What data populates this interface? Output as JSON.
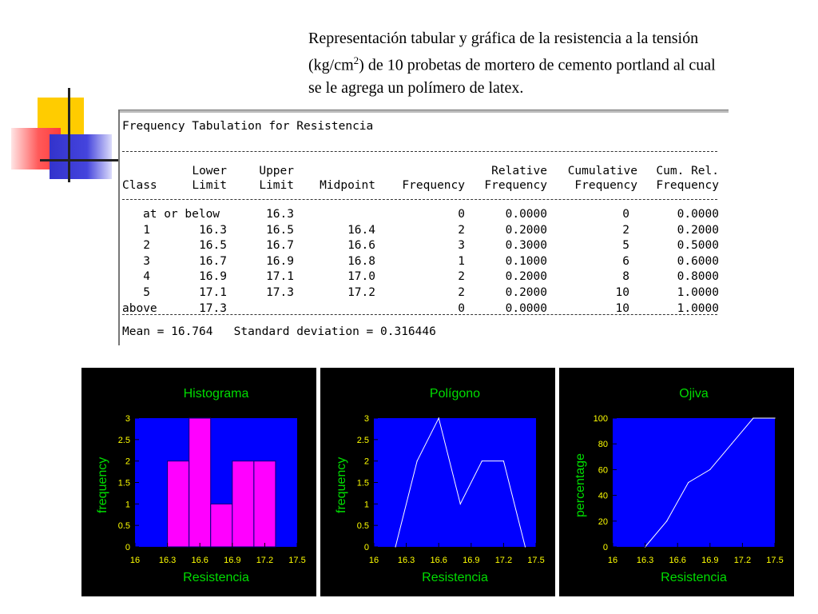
{
  "heading": {
    "line1": "Representación tabular y gráfica de la resistencia a la tensión",
    "line2_pre": "(kg/cm",
    "line2_sup": "2",
    "line2_post": ") de 10 probetas de mortero de cemento portland al cual",
    "line3": "se le agrega un polímero de latex."
  },
  "tabulation": {
    "title": "Frequency Tabulation for Resistencia",
    "headers_row1": [
      "",
      "Lower",
      "Upper",
      "",
      "",
      "Relative",
      "Cumulative",
      "Cum. Rel."
    ],
    "headers_row2": [
      "Class",
      "Limit",
      "Limit",
      "Midpoint",
      "Frequency",
      "Frequency",
      "Frequency",
      "Frequency"
    ],
    "rows": [
      {
        "class": "at or below",
        "lower": "",
        "upper": "16.3",
        "midpoint": "",
        "freq": "0",
        "rel": "0.0000",
        "cum": "0",
        "cumrel": "0.0000"
      },
      {
        "class": "1",
        "lower": "16.3",
        "upper": "16.5",
        "midpoint": "16.4",
        "freq": "2",
        "rel": "0.2000",
        "cum": "2",
        "cumrel": "0.2000"
      },
      {
        "class": "2",
        "lower": "16.5",
        "upper": "16.7",
        "midpoint": "16.6",
        "freq": "3",
        "rel": "0.3000",
        "cum": "5",
        "cumrel": "0.5000"
      },
      {
        "class": "3",
        "lower": "16.7",
        "upper": "16.9",
        "midpoint": "16.8",
        "freq": "1",
        "rel": "0.1000",
        "cum": "6",
        "cumrel": "0.6000"
      },
      {
        "class": "4",
        "lower": "16.9",
        "upper": "17.1",
        "midpoint": "17.0",
        "freq": "2",
        "rel": "0.2000",
        "cum": "8",
        "cumrel": "0.8000"
      },
      {
        "class": "5",
        "lower": "17.1",
        "upper": "17.3",
        "midpoint": "17.2",
        "freq": "2",
        "rel": "0.2000",
        "cum": "10",
        "cumrel": "1.0000"
      },
      {
        "class": "above",
        "lower": "17.3",
        "upper": "",
        "midpoint": "",
        "freq": "0",
        "rel": "0.0000",
        "cum": "10",
        "cumrel": "1.0000"
      }
    ],
    "summary": "Mean = 16.764   Standard deviation = 0.316446"
  },
  "chart_data": [
    {
      "type": "bar",
      "title": "Histograma",
      "xlabel": "Resistencia",
      "ylabel": "frequency",
      "xticks": [
        "16",
        "16.3",
        "16.6",
        "16.9",
        "17.2",
        "17.5"
      ],
      "xlim": [
        16,
        17.5
      ],
      "yticks": [
        "0",
        "0.5",
        "1",
        "1.5",
        "2",
        "2.5",
        "3"
      ],
      "ylim": [
        0,
        3
      ],
      "bins": [
        {
          "from": 16.3,
          "to": 16.5,
          "value": 2
        },
        {
          "from": 16.5,
          "to": 16.7,
          "value": 3
        },
        {
          "from": 16.7,
          "to": 16.9,
          "value": 1
        },
        {
          "from": 16.9,
          "to": 17.1,
          "value": 2
        },
        {
          "from": 17.1,
          "to": 17.3,
          "value": 2
        }
      ],
      "colors": {
        "background": "#0000ff",
        "bar": "#ff00ff",
        "text": "#00dd00",
        "ticks": "#ffff00"
      }
    },
    {
      "type": "line",
      "title": "Polígono",
      "xlabel": "Resistencia",
      "ylabel": "frequency",
      "xticks": [
        "16",
        "16.3",
        "16.6",
        "16.9",
        "17.2",
        "17.5"
      ],
      "xlim": [
        16,
        17.5
      ],
      "yticks": [
        "0",
        "0.5",
        "1",
        "1.5",
        "2",
        "2.5",
        "3"
      ],
      "ylim": [
        0,
        3
      ],
      "x": [
        16.2,
        16.4,
        16.6,
        16.8,
        17.0,
        17.2,
        17.4
      ],
      "y": [
        0,
        2,
        3,
        1,
        2,
        2,
        0
      ],
      "colors": {
        "background": "#0000ff",
        "line": "#ffffff",
        "text": "#00dd00",
        "ticks": "#ffff00"
      }
    },
    {
      "type": "line",
      "title": "Ojiva",
      "xlabel": "Resistencia",
      "ylabel": "percentage",
      "xticks": [
        "16",
        "16.3",
        "16.6",
        "16.9",
        "17.2",
        "17.5"
      ],
      "xlim": [
        16,
        17.5
      ],
      "yticks": [
        "0",
        "20",
        "40",
        "60",
        "80",
        "100"
      ],
      "ylim": [
        0,
        100
      ],
      "x": [
        16.3,
        16.5,
        16.7,
        16.9,
        17.1,
        17.3,
        17.5
      ],
      "y": [
        0,
        20,
        50,
        60,
        80,
        100,
        100
      ],
      "colors": {
        "background": "#0000ff",
        "line": "#ffffff",
        "text": "#00dd00",
        "ticks": "#ffff00"
      }
    }
  ]
}
